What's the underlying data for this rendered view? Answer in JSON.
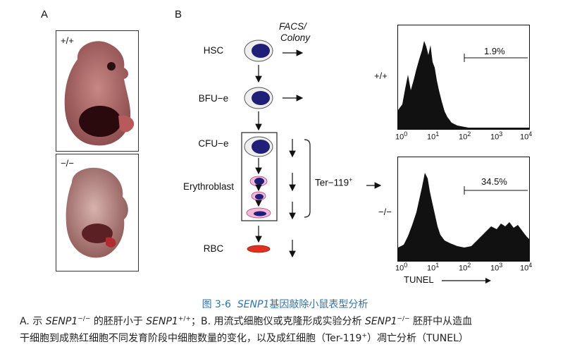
{
  "panel_a": {
    "label": "A",
    "top_genotype": "+/+",
    "bottom_genotype": "−/−"
  },
  "panel_b": {
    "label": "B",
    "facs_label_line1": "FACS/",
    "facs_label_line2": "Colony",
    "stages": [
      "HSC",
      "BFU−e",
      "CFU−e",
      "Erythroblast",
      "RBC"
    ],
    "ter_label": "Ter−119",
    "ter_sup": "+",
    "histograms": [
      {
        "genotype": "+/+",
        "percent": "1.9%"
      },
      {
        "genotype": "−/−",
        "percent": "34.5%"
      }
    ],
    "x_ticks": [
      "10",
      "10",
      "10",
      "10",
      "10"
    ],
    "x_tick_exponents": [
      "0",
      "1",
      "2",
      "3",
      "4"
    ],
    "x_axis_label": "TUNEL"
  },
  "caption": {
    "title_prefix": "图 3-6",
    "title_gene": "SENP1",
    "title_rest": "基因敲除小鼠表型分析",
    "line1_a": "A. 示",
    "line1_gene1": "SENP1",
    "line1_sup1": "−/−",
    "line1_b": "的胚肝小于",
    "line1_gene2": "SENP1",
    "line1_sup2": "+/+",
    "line1_c": "；B. 用流式细胞仪或克隆形成实验分析",
    "line1_gene3": "SENP1",
    "line1_sup3": "−/−",
    "line1_d": "胚肝中从造血",
    "line2_a": "干细胞到成熟红细胞不同发育阶段中细胞数量的变化，以及成红细胞（Ter-119",
    "line2_sup": "+",
    "line2_b": "）凋亡分析（TUNEL）"
  },
  "colors": {
    "caption_title": "#2b73b8",
    "nucleus": "#1f1f7a",
    "erythroblast": "#f4b6d8",
    "rbc": "#e0311f"
  }
}
